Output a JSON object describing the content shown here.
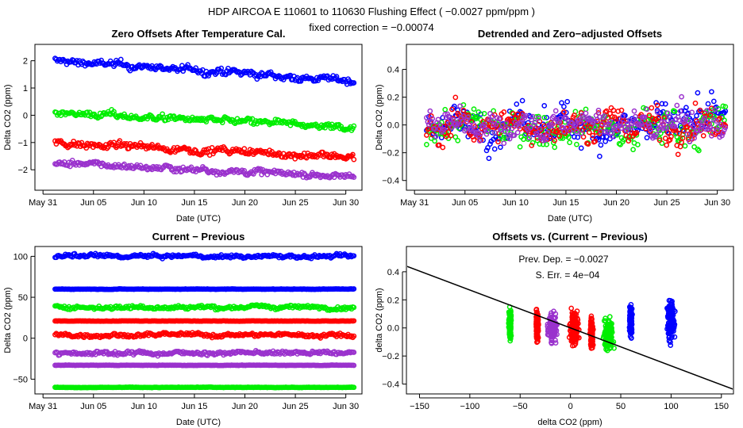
{
  "header": {
    "title": "HDP   AIRCOA E   110601 to 110630   Flushing Effect ( −0.0027 ppm/ppm )",
    "subtitle": "fixed correction = −0.00074"
  },
  "colors": {
    "blue": "#0000ff",
    "green": "#00ee00",
    "red": "#ff0000",
    "purple": "#9a32cd",
    "line": "#000000"
  },
  "chart_data": [
    {
      "id": "zero-offsets",
      "type": "scatter",
      "title": "Zero Offsets After Temperature Cal.",
      "xlabel": "Date (UTC)",
      "ylabel": "Delta CO2 (ppm)",
      "x_ticks": [
        "May 31",
        "Jun 05",
        "Jun 10",
        "Jun 15",
        "Jun 20",
        "Jun 25",
        "Jun 30"
      ],
      "x_tick_days": [
        0,
        5,
        10,
        15,
        20,
        25,
        30
      ],
      "xlim": [
        -0.8,
        31.6
      ],
      "y_ticks": [
        -2,
        -1,
        0,
        1,
        2
      ],
      "y_tick_labels": [
        "−2",
        "−1",
        "0",
        "1",
        "2"
      ],
      "ylim": [
        -2.75,
        2.6
      ],
      "series": [
        {
          "name": "blue",
          "color": "#0000ff",
          "start": 2.0,
          "end": 1.25,
          "noise": 0.14,
          "x_range": [
            1.2,
            30.8
          ]
        },
        {
          "name": "green",
          "color": "#00ee00",
          "start": 0.1,
          "end": -0.45,
          "noise": 0.13,
          "x_range": [
            1.2,
            30.8
          ]
        },
        {
          "name": "red",
          "color": "#ff0000",
          "start": -1.0,
          "end": -1.55,
          "noise": 0.14,
          "x_range": [
            1.2,
            30.8
          ]
        },
        {
          "name": "purple",
          "color": "#9a32cd",
          "start": -1.75,
          "end": -2.25,
          "noise": 0.12,
          "x_range": [
            1.2,
            30.8
          ]
        }
      ]
    },
    {
      "id": "detrended",
      "type": "scatter",
      "title": "Detrended and Zero−adjusted Offsets",
      "xlabel": "Date (UTC)",
      "ylabel": "Delta CO2 (ppm)",
      "x_ticks": [
        "May 31",
        "Jun 05",
        "Jun 10",
        "Jun 15",
        "Jun 20",
        "Jun 25",
        "Jun 30"
      ],
      "x_tick_days": [
        0,
        5,
        10,
        15,
        20,
        25,
        30
      ],
      "xlim": [
        -0.8,
        31.6
      ],
      "y_ticks": [
        -0.4,
        -0.2,
        0.0,
        0.2,
        0.4
      ],
      "y_tick_labels": [
        "−0.4",
        "−0.2",
        "0.0",
        "0.2",
        "0.4"
      ],
      "ylim": [
        -0.47,
        0.58
      ],
      "series": [
        {
          "name": "blue",
          "color": "#0000ff",
          "start": 0.0,
          "end": 0.0,
          "noise": 0.14,
          "x_range": [
            1.2,
            30.8
          ]
        },
        {
          "name": "green",
          "color": "#00ee00",
          "start": 0.0,
          "end": 0.0,
          "noise": 0.14,
          "x_range": [
            1.2,
            30.8
          ]
        },
        {
          "name": "red",
          "color": "#ff0000",
          "start": 0.0,
          "end": 0.0,
          "noise": 0.14,
          "x_range": [
            1.2,
            30.8
          ]
        },
        {
          "name": "purple",
          "color": "#9a32cd",
          "start": 0.0,
          "end": 0.0,
          "noise": 0.12,
          "x_range": [
            1.2,
            30.8
          ]
        }
      ]
    },
    {
      "id": "current-previous",
      "type": "scatter",
      "title": "Current − Previous",
      "xlabel": "Date (UTC)",
      "ylabel": "Delta CO2 (ppm)",
      "x_ticks": [
        "May 31",
        "Jun 05",
        "Jun 10",
        "Jun 15",
        "Jun 20",
        "Jun 25",
        "Jun 30"
      ],
      "x_tick_days": [
        0,
        5,
        10,
        15,
        20,
        25,
        30
      ],
      "xlim": [
        -0.8,
        31.6
      ],
      "y_ticks": [
        -50,
        0,
        50,
        100
      ],
      "y_tick_labels": [
        "−50",
        "0",
        "50",
        "100"
      ],
      "ylim": [
        -68,
        112
      ],
      "series": [
        {
          "name": "blue-high",
          "color": "#0000ff",
          "start": 100,
          "end": 100,
          "noise": 2.5,
          "x_range": [
            1.2,
            30.8
          ]
        },
        {
          "name": "blue-low",
          "color": "#0000ff",
          "start": 60,
          "end": 60,
          "noise": 0.3,
          "x_range": [
            1.2,
            30.8
          ]
        },
        {
          "name": "green-high",
          "color": "#00ee00",
          "start": 38,
          "end": 38,
          "noise": 2.5,
          "x_range": [
            1.2,
            30.8
          ]
        },
        {
          "name": "green-low",
          "color": "#00ee00",
          "start": -60,
          "end": -60,
          "noise": 0.3,
          "x_range": [
            1.2,
            30.8
          ]
        },
        {
          "name": "red-high",
          "color": "#ff0000",
          "start": 21,
          "end": 21,
          "noise": 0.3,
          "x_range": [
            1.2,
            30.8
          ]
        },
        {
          "name": "red-low",
          "color": "#ff0000",
          "start": 4,
          "end": 4,
          "noise": 2.5,
          "x_range": [
            1.2,
            30.8
          ]
        },
        {
          "name": "purple-high",
          "color": "#9a32cd",
          "start": -18,
          "end": -18,
          "noise": 2.5,
          "x_range": [
            1.2,
            30.8
          ]
        },
        {
          "name": "purple-low",
          "color": "#9a32cd",
          "start": -33,
          "end": -33,
          "noise": 0.3,
          "x_range": [
            1.2,
            30.8
          ]
        }
      ]
    },
    {
      "id": "offsets-vs-diff",
      "type": "scatter",
      "title": "Offsets vs. (Current − Previous)",
      "xlabel": "delta CO2 (ppm)",
      "ylabel": "delta CO2 (ppm)",
      "x_ticks": [
        -150,
        -100,
        -50,
        0,
        50,
        100,
        150
      ],
      "x_tick_labels": [
        "−150",
        "−100",
        "−50",
        "0",
        "50",
        "100",
        "150"
      ],
      "xlim": [
        -163,
        162
      ],
      "y_ticks": [
        -0.4,
        -0.2,
        0.0,
        0.2,
        0.4
      ],
      "y_tick_labels": [
        "−0.4",
        "−0.2",
        "0.0",
        "0.2",
        "0.4"
      ],
      "ylim": [
        -0.47,
        0.58
      ],
      "annotations": {
        "dep_label": "Prev. Dep. =  −0.0027",
        "err_label": "S. Err. =  4e−04"
      },
      "fit_line": {
        "slope": -0.0027,
        "intercept": 0.0
      },
      "clusters": [
        {
          "color": "#00ee00",
          "x": -60,
          "xspread": 2,
          "ymean": 0.03,
          "yspread": 0.15
        },
        {
          "color": "#ff0000",
          "x": -33,
          "xspread": 2,
          "ymean": 0.02,
          "yspread": 0.15
        },
        {
          "color": "#9a32cd",
          "x": -18,
          "xspread": 7,
          "ymean": 0.0,
          "yspread": 0.14
        },
        {
          "color": "#ff0000",
          "x": 4,
          "xspread": 7,
          "ymean": 0.0,
          "yspread": 0.15
        },
        {
          "color": "#ff0000",
          "x": 21,
          "xspread": 2,
          "ymean": -0.05,
          "yspread": 0.15
        },
        {
          "color": "#00ee00",
          "x": 38,
          "xspread": 7,
          "ymean": -0.05,
          "yspread": 0.16
        },
        {
          "color": "#0000ff",
          "x": 60,
          "xspread": 2,
          "ymean": 0.05,
          "yspread": 0.15
        },
        {
          "color": "#0000ff",
          "x": 100,
          "xspread": 6,
          "ymean": 0.05,
          "yspread": 0.18
        }
      ]
    }
  ]
}
